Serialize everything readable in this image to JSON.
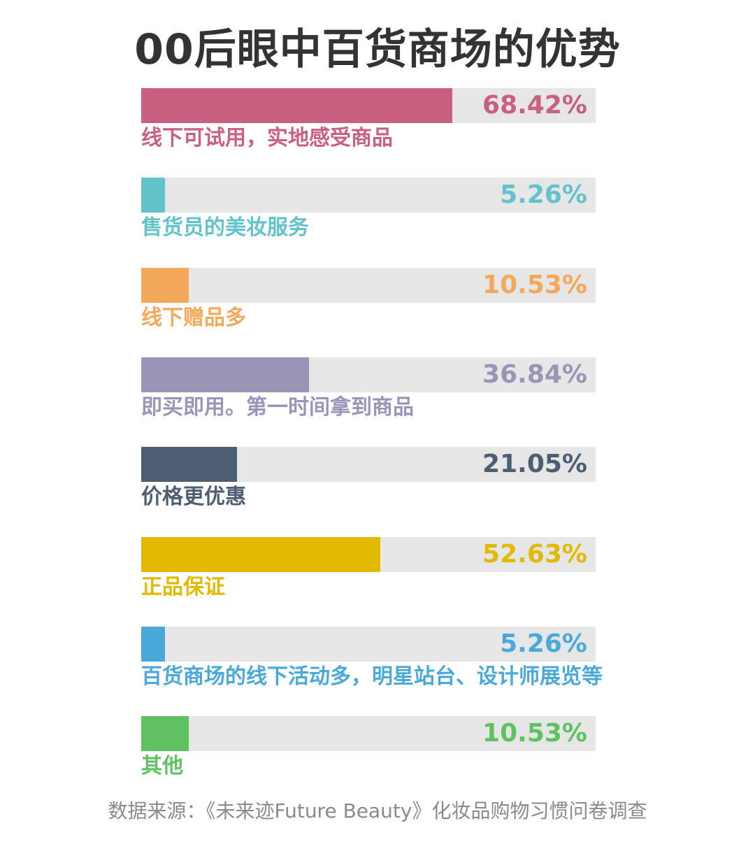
{
  "chart_data": {
    "type": "bar",
    "orientation": "horizontal",
    "title": "00后眼中百货商场的优势",
    "xlim": [
      0,
      100
    ],
    "grid": false,
    "legend": "none",
    "categories": [
      "线下可试用，实地感受商品",
      "售货员的美妆服务",
      "线下赠品多",
      "即买即用。第一时间拿到商品",
      "价格更优惠",
      "正品保证",
      "百货商场的线下活动多，明星站台、设计师展览等",
      "其他"
    ],
    "values": [
      68.42,
      5.26,
      10.53,
      36.84,
      21.05,
      52.63,
      5.26,
      10.53
    ],
    "value_labels": [
      "68.42%",
      "5.26%",
      "10.53%",
      "36.84%",
      "21.05%",
      "52.63%",
      "5.26%",
      "10.53%"
    ],
    "colors": [
      "#c9607f",
      "#62c3cb",
      "#f4a95a",
      "#9a95b6",
      "#4e5e72",
      "#e2b800",
      "#4aa9d9",
      "#5fc160"
    ],
    "track_color": "#e6e6e6",
    "source": "数据来源：《未来迹Future Beauty》化妆品购物习惯问卷调查"
  }
}
